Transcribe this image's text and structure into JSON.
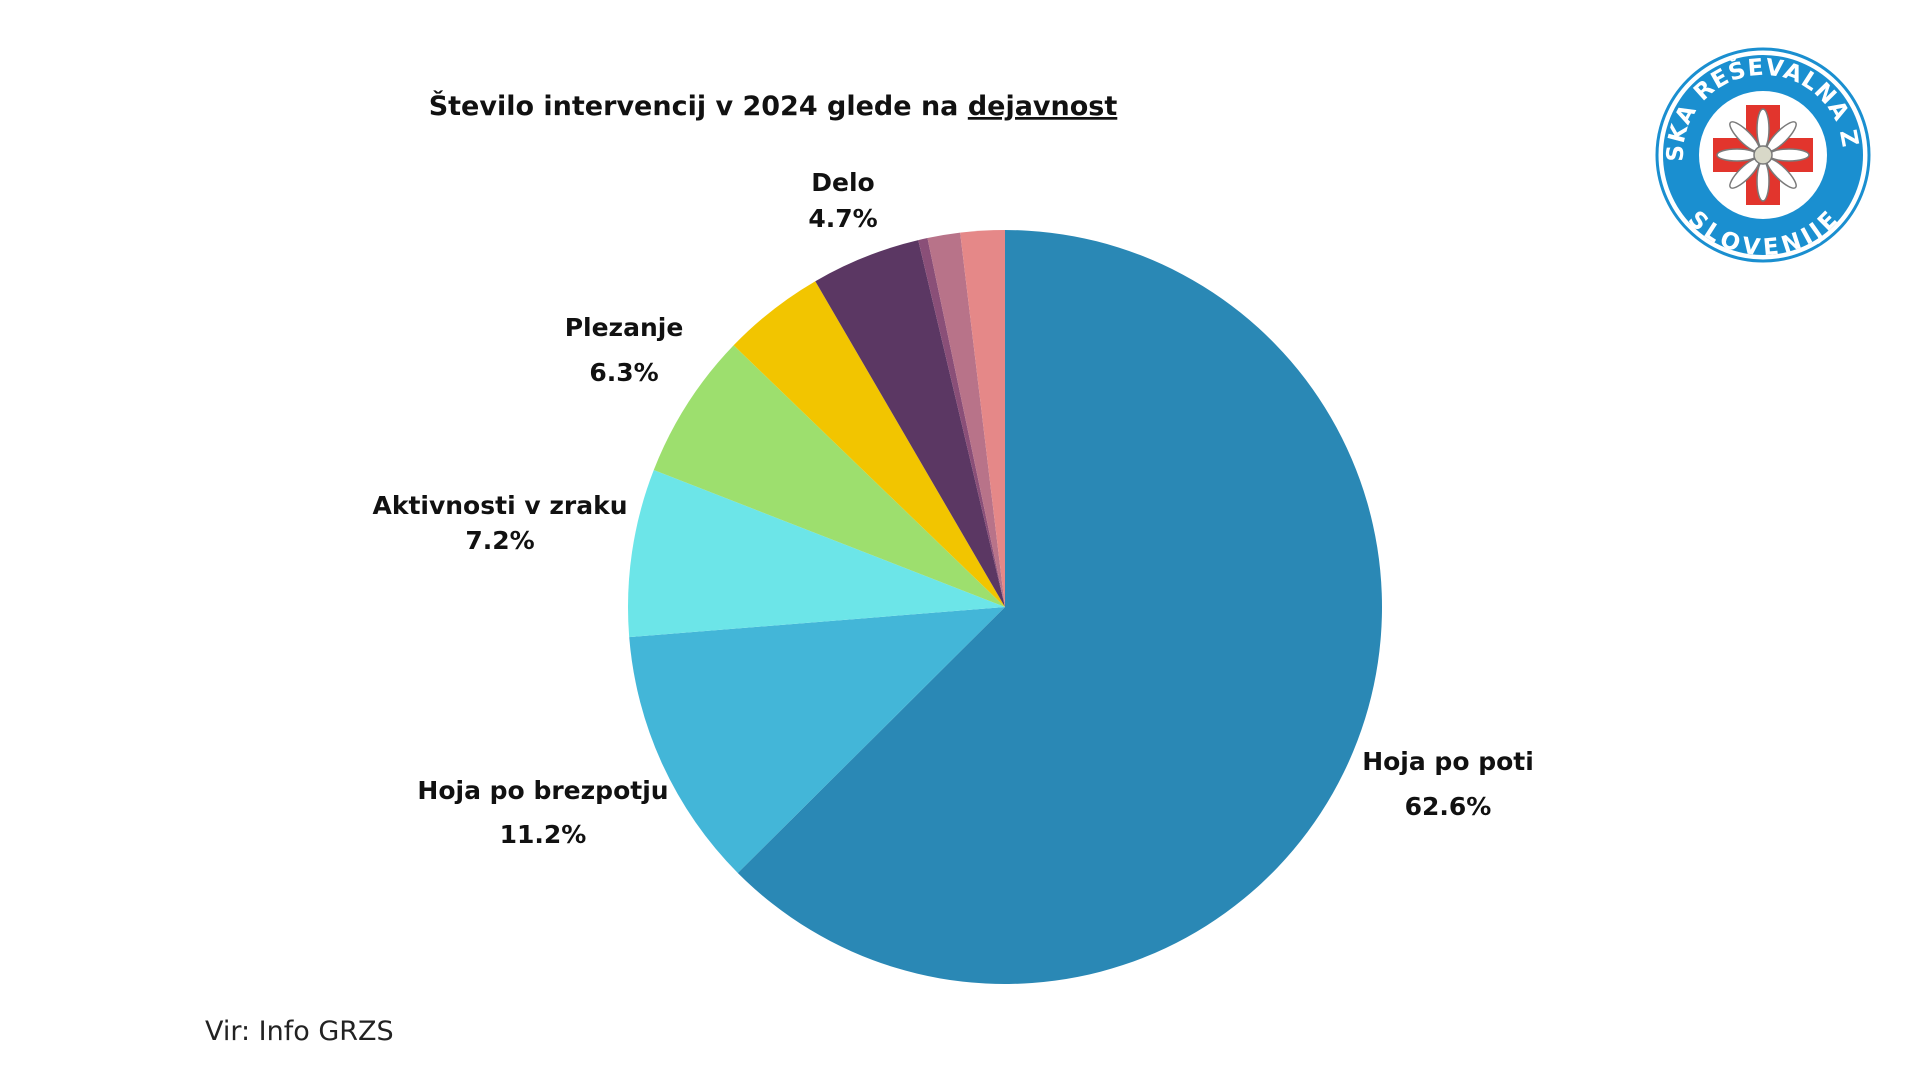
{
  "chart_data": {
    "type": "pie",
    "title_main": "Število intervencij v 2024 glede na ",
    "title_underlined": "dejavnost",
    "start_angle_deg": 0,
    "direction": "clockwise",
    "slices": [
      {
        "label": "Hoja po poti",
        "value": 62.6,
        "display": "62.6%",
        "color": "#2a88b5"
      },
      {
        "label": "Hoja po brezpotju",
        "value": 11.2,
        "display": "11.2%",
        "color": "#43b6d8"
      },
      {
        "label": "Aktivnosti v zraku",
        "value": 7.2,
        "display": "7.2%",
        "color": "#6ce5e8"
      },
      {
        "label": "Plezanje",
        "value": 6.3,
        "display": "6.3%",
        "color": "#9ddf6e"
      },
      {
        "label": "",
        "value": 4.4,
        "display": "",
        "color": "#f2c500"
      },
      {
        "label": "Delo",
        "value": 4.7,
        "display": "4.7%",
        "color": "#5b3763"
      },
      {
        "label": "",
        "value": 0.4,
        "display": "",
        "color": "#8a4f78"
      },
      {
        "label": "",
        "value": 1.4,
        "display": "",
        "color": "#b87389"
      },
      {
        "label": "",
        "value": 1.9,
        "display": "",
        "color": "#e58888"
      }
    ]
  },
  "source": "Vir: Info GRZS",
  "logo": {
    "text_top": "GORSKA REŠEVALNA ZVEZA",
    "text_bottom": "SLOVENIJE",
    "ring_color": "#1a8fd0",
    "cross_color": "#e2352d"
  }
}
